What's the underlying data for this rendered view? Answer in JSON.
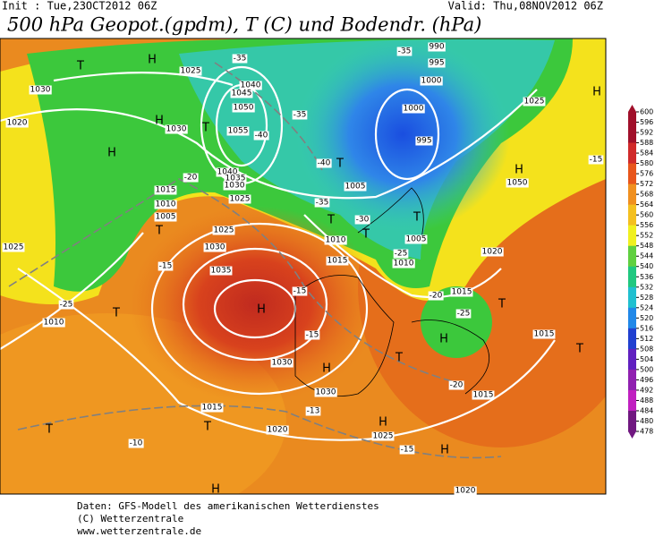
{
  "header": {
    "init": "Init : Tue,23OCT2012 06Z",
    "valid": "Valid: Thu,08NOV2012 06Z",
    "title": "500 hPa Geopot.(gpdm), T (C) und Bodendr. (hPa)"
  },
  "legend": {
    "ticks": [
      600,
      596,
      592,
      588,
      584,
      580,
      576,
      572,
      568,
      564,
      560,
      556,
      552,
      548,
      544,
      540,
      536,
      532,
      528,
      524,
      520,
      516,
      512,
      508,
      504,
      500,
      496,
      492,
      488,
      484,
      480,
      478
    ]
  },
  "map_labels": [
    "1040",
    "1045",
    "1050",
    "1055",
    "1040",
    "1035",
    "1030",
    "1025",
    "1025",
    "1030",
    "1020",
    "1030",
    "1015",
    "1010",
    "1005",
    "1025",
    "1010",
    "1030",
    "1025",
    "1035",
    "1030",
    "1030",
    "1015",
    "1020",
    "1025",
    "1020",
    "1015",
    "1015",
    "1020",
    "1015",
    "1010",
    "1005",
    "1010",
    "1015",
    "1005",
    "1000",
    "995",
    "995",
    "990",
    "1000",
    "1025",
    "1050",
    "-35",
    "-35",
    "-40",
    "-40",
    "-35",
    "-30",
    "-25",
    "-25",
    "-20",
    "-20",
    "-15",
    "-15",
    "-15",
    "-15",
    "-10",
    "-13",
    "-15",
    "-25",
    "-20",
    "-35",
    "H",
    "H",
    "H",
    "H",
    "T",
    "T",
    "T",
    "T",
    "T",
    "T",
    "T",
    "T",
    "T",
    "T",
    "T",
    "T",
    "H",
    "H",
    "H",
    "H",
    "H",
    "H",
    "H",
    "T"
  ],
  "footer": {
    "source": "Daten: GFS-Modell des amerikanischen Wetterdienstes",
    "copyright": "(C) Wetterzentrale",
    "url": "www.wetterzentrale.de"
  }
}
